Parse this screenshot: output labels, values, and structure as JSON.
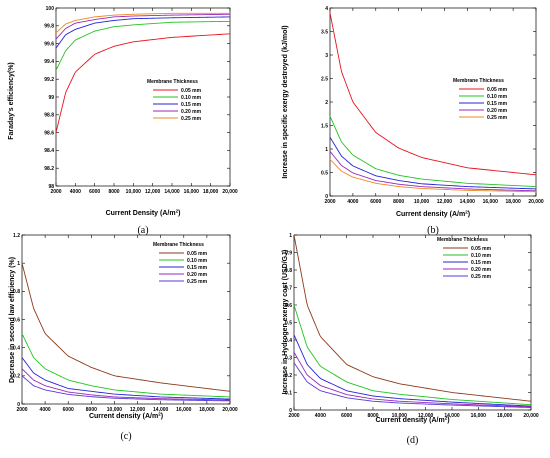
{
  "chart_data": [
    {
      "type": "line",
      "panel_label": "(a)",
      "xlabel": "Current Density (A/m",
      "xlabel_sup": "2",
      "xlabel_tail": ")",
      "ylabel": "Faraday's efficiency(%)",
      "xlim": [
        2000,
        20000
      ],
      "ylim": [
        98,
        100
      ],
      "xticks": [
        2000,
        4000,
        6000,
        8000,
        10000,
        12000,
        14000,
        16000,
        18000,
        20000
      ],
      "xtick_labels": [
        "2000",
        "4000",
        "6000",
        "8000",
        "10,000",
        "12,000",
        "14,000",
        "16,000",
        "18,000",
        "20,000"
      ],
      "yticks": [
        98,
        98.2,
        98.4,
        98.6,
        98.8,
        99,
        99.2,
        99.4,
        99.6,
        99.8,
        100
      ],
      "ytick_labels": [
        "98",
        "98.2",
        "98.4",
        "98.6",
        "98.8",
        "99",
        "99.2",
        "99.4",
        "99.6",
        "99.8",
        "100"
      ],
      "legend_title": "Membrane Thickness",
      "legend_position": "center-right",
      "x": [
        2000,
        3000,
        4000,
        6000,
        8000,
        10000,
        14000,
        20000
      ],
      "series": [
        {
          "name": "0.05 mm",
          "color": "#e8141e",
          "values": [
            98.6,
            99.05,
            99.28,
            99.48,
            99.57,
            99.62,
            99.67,
            99.71
          ]
        },
        {
          "name": "0.10 mm",
          "color": "#22c422",
          "values": [
            99.3,
            99.52,
            99.64,
            99.74,
            99.79,
            99.81,
            99.84,
            99.85
          ]
        },
        {
          "name": "0.15 mm",
          "color": "#2424d8",
          "values": [
            99.55,
            99.7,
            99.76,
            99.83,
            99.86,
            99.88,
            99.89,
            99.9
          ]
        },
        {
          "name": "0.20 mm",
          "color": "#9a2ab8",
          "values": [
            99.65,
            99.77,
            99.83,
            99.87,
            99.9,
            99.91,
            99.92,
            99.93
          ]
        },
        {
          "name": "0.25 mm",
          "color": "#ee8a2a",
          "values": [
            99.72,
            99.82,
            99.86,
            99.9,
            99.92,
            99.93,
            99.94,
            99.94
          ]
        }
      ]
    },
    {
      "type": "line",
      "panel_label": "(b)",
      "xlabel": "Current density (A/m",
      "xlabel_sup": "2",
      "xlabel_tail": ")",
      "ylabel": "Increase in specific exergy destroyed (kJ/mol)",
      "xlim": [
        2000,
        20000
      ],
      "ylim": [
        0,
        4
      ],
      "xticks": [
        2000,
        4000,
        6000,
        8000,
        10000,
        12000,
        14000,
        16000,
        18000,
        20000
      ],
      "xtick_labels": [
        "2000",
        "4000",
        "6000",
        "8000",
        "10,000",
        "12,000",
        "14,000",
        "16,000",
        "18,000",
        "20,000"
      ],
      "yticks": [
        0,
        0.5,
        1,
        1.5,
        2,
        2.5,
        3,
        3.5,
        4
      ],
      "ytick_labels": [
        "0",
        "0.5",
        "1",
        "1.5",
        "2",
        "2.5",
        "3",
        "3.5",
        "4"
      ],
      "legend_title": "Membrane Thickness",
      "legend_position": "center-right",
      "x": [
        2000,
        3000,
        4000,
        6000,
        8000,
        10000,
        14000,
        20000
      ],
      "series": [
        {
          "name": "0.05 mm",
          "color": "#e8141e",
          "values": [
            3.9,
            2.65,
            2.0,
            1.35,
            1.02,
            0.82,
            0.6,
            0.45
          ]
        },
        {
          "name": "0.10 mm",
          "color": "#22c422",
          "values": [
            1.7,
            1.15,
            0.87,
            0.58,
            0.44,
            0.36,
            0.27,
            0.2
          ]
        },
        {
          "name": "0.15 mm",
          "color": "#2424d8",
          "values": [
            1.25,
            0.85,
            0.64,
            0.43,
            0.33,
            0.26,
            0.2,
            0.15
          ]
        },
        {
          "name": "0.20 mm",
          "color": "#9a2ab8",
          "values": [
            0.95,
            0.65,
            0.49,
            0.33,
            0.25,
            0.2,
            0.15,
            0.11
          ]
        },
        {
          "name": "0.25 mm",
          "color": "#ee8a2a",
          "values": [
            0.78,
            0.53,
            0.4,
            0.27,
            0.2,
            0.16,
            0.12,
            0.09
          ]
        }
      ]
    },
    {
      "type": "line",
      "panel_label": "(c)",
      "xlabel": "Current density (A/m",
      "xlabel_sup": "2",
      "xlabel_tail": ")",
      "ylabel": "Decrease in second law efficiency (%)",
      "xlim": [
        2000,
        20000
      ],
      "ylim": [
        0,
        1.2
      ],
      "xticks": [
        2000,
        4000,
        6000,
        8000,
        10000,
        12000,
        14000,
        16000,
        18000,
        20000
      ],
      "xtick_labels": [
        "2000",
        "4000",
        "6000",
        "8000",
        "10,000",
        "12,000",
        "14,000",
        "16,000",
        "18,000",
        "20,000"
      ],
      "yticks": [
        0,
        0.2,
        0.4,
        0.6,
        0.8,
        1,
        1.2
      ],
      "ytick_labels": [
        "0",
        "0.2",
        "0.4",
        "0.6",
        "0.8",
        "1",
        "1.2"
      ],
      "legend_title": "Membrane Thickness",
      "legend_position": "top-right",
      "x": [
        2000,
        3000,
        4000,
        6000,
        8000,
        10000,
        14000,
        20000
      ],
      "series": [
        {
          "name": "0.05 mm",
          "color": "#8b3a1a",
          "values": [
            1.0,
            0.68,
            0.5,
            0.34,
            0.26,
            0.2,
            0.15,
            0.09
          ]
        },
        {
          "name": "0.10 mm",
          "color": "#22c422",
          "values": [
            0.5,
            0.33,
            0.25,
            0.17,
            0.13,
            0.1,
            0.07,
            0.05
          ]
        },
        {
          "name": "0.15 mm",
          "color": "#2424d8",
          "values": [
            0.33,
            0.22,
            0.17,
            0.11,
            0.09,
            0.07,
            0.05,
            0.035
          ]
        },
        {
          "name": "0.20 mm",
          "color": "#9a2ab8",
          "values": [
            0.25,
            0.17,
            0.13,
            0.085,
            0.065,
            0.05,
            0.038,
            0.028
          ]
        },
        {
          "name": "0.25 mm",
          "color": "#5a3ad8",
          "values": [
            0.2,
            0.13,
            0.1,
            0.068,
            0.052,
            0.041,
            0.03,
            0.022
          ]
        }
      ]
    },
    {
      "type": "line",
      "panel_label": "(d)",
      "xlabel": "Current density (A/m",
      "xlabel_sup": "2",
      "xlabel_tail": ")",
      "ylabel": "Increase in Hydrogen exergy cost (USD/GJ)",
      "xlim": [
        2000,
        20000
      ],
      "ylim": [
        0,
        1
      ],
      "xticks": [
        2000,
        4000,
        6000,
        8000,
        10000,
        12000,
        14000,
        16000,
        18000,
        20000
      ],
      "xtick_labels": [
        "2000",
        "4000",
        "6000",
        "8000",
        "10,000",
        "12,000",
        "14,000",
        "16,000",
        "18,000",
        "20,000"
      ],
      "yticks": [
        0,
        0.1,
        0.2,
        0.3,
        0.4,
        0.5,
        0.6,
        0.7,
        0.8,
        0.9,
        1
      ],
      "ytick_labels": [
        "0",
        "0.1",
        "0.2",
        "0.3",
        "0.4",
        "0.5",
        "0.6",
        "0.7",
        "0.8",
        "0.9",
        "1"
      ],
      "legend_title": "Membrane Thickness",
      "legend_position": "top-right",
      "x": [
        2000,
        3000,
        4000,
        6000,
        8000,
        10000,
        14000,
        20000
      ],
      "series": [
        {
          "name": "0.05 mm",
          "color": "#8b3a1a",
          "values": [
            1.0,
            0.6,
            0.42,
            0.26,
            0.19,
            0.15,
            0.1,
            0.05
          ]
        },
        {
          "name": "0.10 mm",
          "color": "#22c422",
          "values": [
            0.6,
            0.36,
            0.25,
            0.16,
            0.11,
            0.09,
            0.06,
            0.03
          ]
        },
        {
          "name": "0.15 mm",
          "color": "#2424d8",
          "values": [
            0.43,
            0.26,
            0.18,
            0.11,
            0.08,
            0.065,
            0.045,
            0.022
          ]
        },
        {
          "name": "0.20 mm",
          "color": "#9a2ab8",
          "values": [
            0.33,
            0.2,
            0.14,
            0.088,
            0.063,
            0.05,
            0.035,
            0.018
          ]
        },
        {
          "name": "0.25 mm",
          "color": "#5a3ad8",
          "values": [
            0.27,
            0.16,
            0.11,
            0.07,
            0.05,
            0.04,
            0.028,
            0.014
          ]
        }
      ]
    }
  ]
}
